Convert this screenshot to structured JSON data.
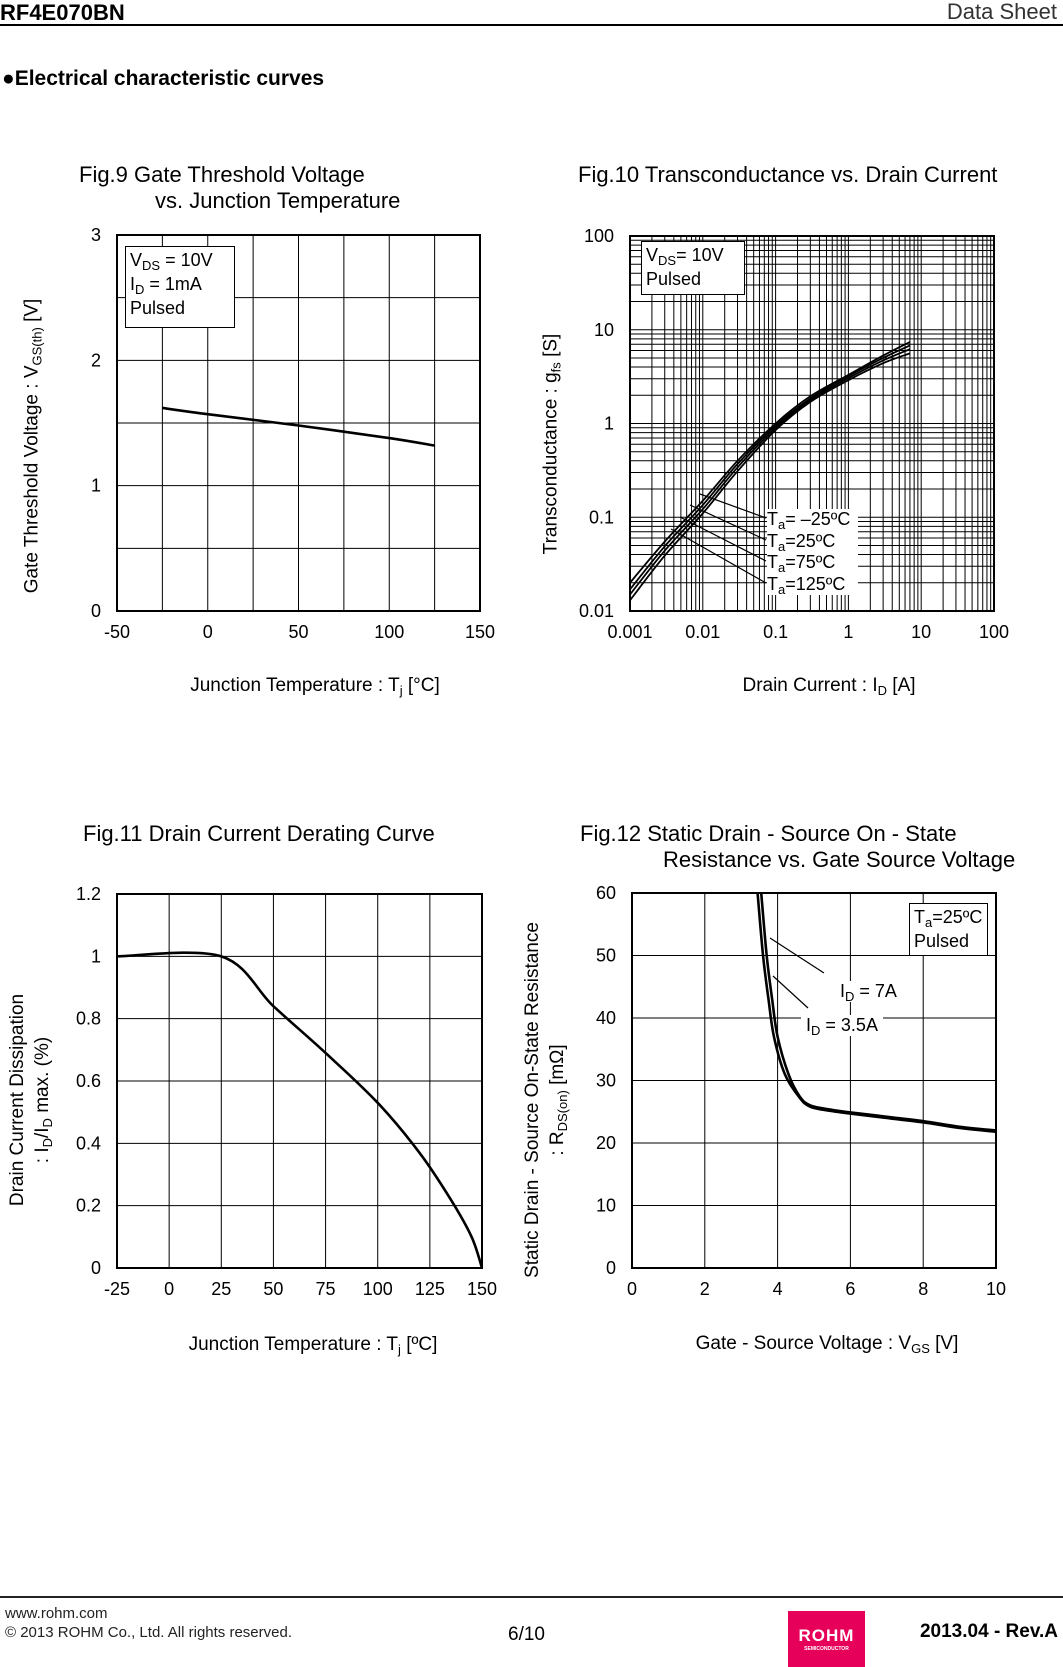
{
  "header": {
    "part_number": "RF4E070BN",
    "doc_type": "Data Sheet"
  },
  "section": {
    "bullet": "●",
    "title": "Electrical characteristic curves"
  },
  "fig9": {
    "title1": "Fig.9 Gate Threshold Voltage",
    "title2": "vs. Junction Temperature",
    "ylabel": {
      "a": "Gate Threshold Voltage : V",
      "sub": "GS(th)",
      "b": " [V]"
    },
    "xlabel": {
      "a": "Junction Temperature : T",
      "sub": "j",
      "b": " [°C]"
    },
    "legend": {
      "l1a": "V",
      "l1sub": "DS",
      "l1b": " = 10V",
      "l2a": "I",
      "l2sub": "D",
      "l2b": " = 1mA",
      "l3": "Pulsed"
    }
  },
  "fig10": {
    "title": "Fig.10 Transconductance vs. Drain Current",
    "ylabel": {
      "a": "Transconductance : g",
      "sub": "fs",
      "b": " [S]"
    },
    "xlabel": {
      "a": "Drain Current : I",
      "sub": "D",
      "b": " [A]"
    },
    "legend": {
      "l1a": "V",
      "l1sub": "DS",
      "l1b": "= 10V",
      "l2": "Pulsed"
    },
    "series_labels": [
      {
        "a": "T",
        "sub": "a",
        "b": "= –25ºC"
      },
      {
        "a": "T",
        "sub": "a",
        "b": "=25ºC"
      },
      {
        "a": "T",
        "sub": "a",
        "b": "=75ºC"
      },
      {
        "a": "T",
        "sub": "a",
        "b": "=125ºC"
      }
    ]
  },
  "fig11": {
    "title": "Fig.11 Drain Current Derating Curve",
    "ylabel1": "Drain Current Dissipation",
    "ylabel2": {
      "a": ": I",
      "sub1": "D",
      "b": "/I",
      "sub2": "D",
      "c": " max. (%)"
    },
    "xlabel": {
      "a": "Junction Temperature : T",
      "sub": "j",
      "b": " [ºC]"
    }
  },
  "fig12": {
    "title1": "Fig.12 Static Drain - Source On - State",
    "title2": "Resistance vs. Gate Source Voltage",
    "ylabel1": "Static Drain - Source On-State Resistance",
    "ylabel2": {
      "a": ": R",
      "sub": "DS(on)",
      "b": " [mΩ]"
    },
    "xlabel": {
      "a": "Gate - Source Voltage : V",
      "sub": "GS",
      "b": " [V]"
    },
    "legend": {
      "l1a": "T",
      "l1sub": "a",
      "l1b": "=25ºC",
      "l2": "Pulsed"
    },
    "series_labels": [
      {
        "a": "I",
        "sub": "D",
        "b": " = 7A"
      },
      {
        "a": "I",
        "sub": "D",
        "b": " = 3.5A"
      }
    ]
  },
  "footer": {
    "website": "www.rohm.com",
    "copyright": "© 2013  ROHM Co., Ltd. All rights reserved.",
    "page": "6/10",
    "logo_text": "ROHM",
    "logo_sub": "SEMICONDUCTOR",
    "revision": "2013.04 -  Rev.A",
    "logo_color": "#e6005a"
  },
  "chart_data": [
    {
      "type": "line",
      "title": "Fig.9 Gate Threshold Voltage vs. Junction Temperature",
      "xlabel": "Junction Temperature : Tj [°C]",
      "ylabel": "Gate Threshold Voltage : VGS(th) [V]",
      "xlim": [
        -50,
        150
      ],
      "ylim": [
        0,
        3
      ],
      "xticks": [
        -50,
        0,
        50,
        100,
        150
      ],
      "yticks": [
        0,
        1,
        2,
        3
      ],
      "xgrid_step": 25,
      "ygrid_step": 0.5,
      "grid": true,
      "legend": "top-left",
      "series": [
        {
          "x": [
            -25,
            0,
            50,
            100,
            125
          ],
          "y": [
            1.62,
            1.57,
            1.48,
            1.38,
            1.32
          ]
        }
      ]
    },
    {
      "type": "line",
      "title": "Fig.10 Transconductance vs. Drain Current",
      "xlabel": "Drain Current : ID [A]",
      "ylabel": "Transconductance : gfs [S]",
      "xscale": "log",
      "yscale": "log",
      "xlim": [
        0.001,
        100
      ],
      "ylim": [
        0.01,
        100
      ],
      "xticks": [
        0.001,
        0.01,
        0.1,
        1,
        10,
        100
      ],
      "yticks": [
        0.01,
        0.1,
        1,
        10,
        100
      ],
      "grid": true,
      "legend": "top-left",
      "series": [
        {
          "name": "Ta= –25ºC",
          "x": [
            0.001,
            0.003,
            0.01,
            0.03,
            0.1,
            0.3,
            1,
            3,
            7
          ],
          "y": [
            0.02,
            0.055,
            0.15,
            0.4,
            1.0,
            1.95,
            3.3,
            5.3,
            7.4
          ]
        },
        {
          "name": "Ta=25ºC",
          "x": [
            0.001,
            0.003,
            0.01,
            0.03,
            0.1,
            0.3,
            1,
            3,
            7
          ],
          "y": [
            0.017,
            0.049,
            0.135,
            0.37,
            0.95,
            1.85,
            3.2,
            5.0,
            6.8
          ]
        },
        {
          "name": "Ta=75ºC",
          "x": [
            0.001,
            0.003,
            0.01,
            0.03,
            0.1,
            0.3,
            1,
            3,
            7
          ],
          "y": [
            0.015,
            0.044,
            0.122,
            0.34,
            0.9,
            1.78,
            3.05,
            4.7,
            6.2
          ]
        },
        {
          "name": "Ta=125ºC",
          "x": [
            0.001,
            0.003,
            0.01,
            0.03,
            0.1,
            0.3,
            1,
            3,
            7
          ],
          "y": [
            0.013,
            0.039,
            0.11,
            0.31,
            0.85,
            1.7,
            2.9,
            4.4,
            5.6
          ]
        }
      ]
    },
    {
      "type": "line",
      "title": "Fig.11 Drain Current Derating Curve",
      "xlabel": "Junction Temperature : Tj [ºC]",
      "ylabel": "Drain Current Dissipation : ID/ID max. (%)",
      "xlim": [
        -25,
        150
      ],
      "ylim": [
        0,
        1.2
      ],
      "xticks": [
        -25,
        0,
        25,
        50,
        75,
        100,
        125,
        150
      ],
      "yticks": [
        0,
        0.2,
        0.4,
        0.6,
        0.8,
        1,
        1.2
      ],
      "xgrid_step": 25,
      "ygrid_step": 0.2,
      "grid": true,
      "series": [
        {
          "x": [
            -25,
            25,
            50,
            75,
            100,
            120,
            135,
            145,
            150
          ],
          "y": [
            1,
            1,
            0.84,
            0.69,
            0.53,
            0.37,
            0.22,
            0.1,
            0
          ]
        }
      ]
    },
    {
      "type": "line",
      "title": "Fig.12 Static Drain - Source On - State Resistance vs. Gate Source Voltage",
      "xlabel": "Gate - Source Voltage : VGS [V]",
      "ylabel": "Static Drain - Source On-State Resistance : RDS(on) [mΩ]",
      "xlim": [
        0,
        10
      ],
      "ylim": [
        0,
        60
      ],
      "xticks": [
        0,
        2,
        4,
        6,
        8,
        10
      ],
      "yticks": [
        0,
        10,
        20,
        30,
        40,
        50,
        60
      ],
      "xgrid_step": 2,
      "ygrid_step": 10,
      "grid": true,
      "legend": "top-right",
      "series": [
        {
          "name": "ID = 7A",
          "x": [
            3.55,
            3.7,
            3.85,
            4.0,
            4.3,
            4.6,
            4.9,
            5.5,
            6,
            7,
            8,
            9,
            10
          ],
          "y": [
            60,
            50,
            43,
            37,
            31,
            27.5,
            26,
            25.3,
            24.9,
            24.2,
            23.5,
            22.6,
            22
          ]
        },
        {
          "name": "ID = 3.5A",
          "x": [
            3.45,
            3.6,
            3.75,
            3.9,
            4.2,
            4.6,
            4.9,
            5.5,
            6,
            7,
            8,
            9,
            10
          ],
          "y": [
            60,
            50,
            43,
            37,
            31,
            27.3,
            25.8,
            25.1,
            24.7,
            24,
            23.3,
            22.4,
            21.8
          ]
        }
      ]
    }
  ]
}
